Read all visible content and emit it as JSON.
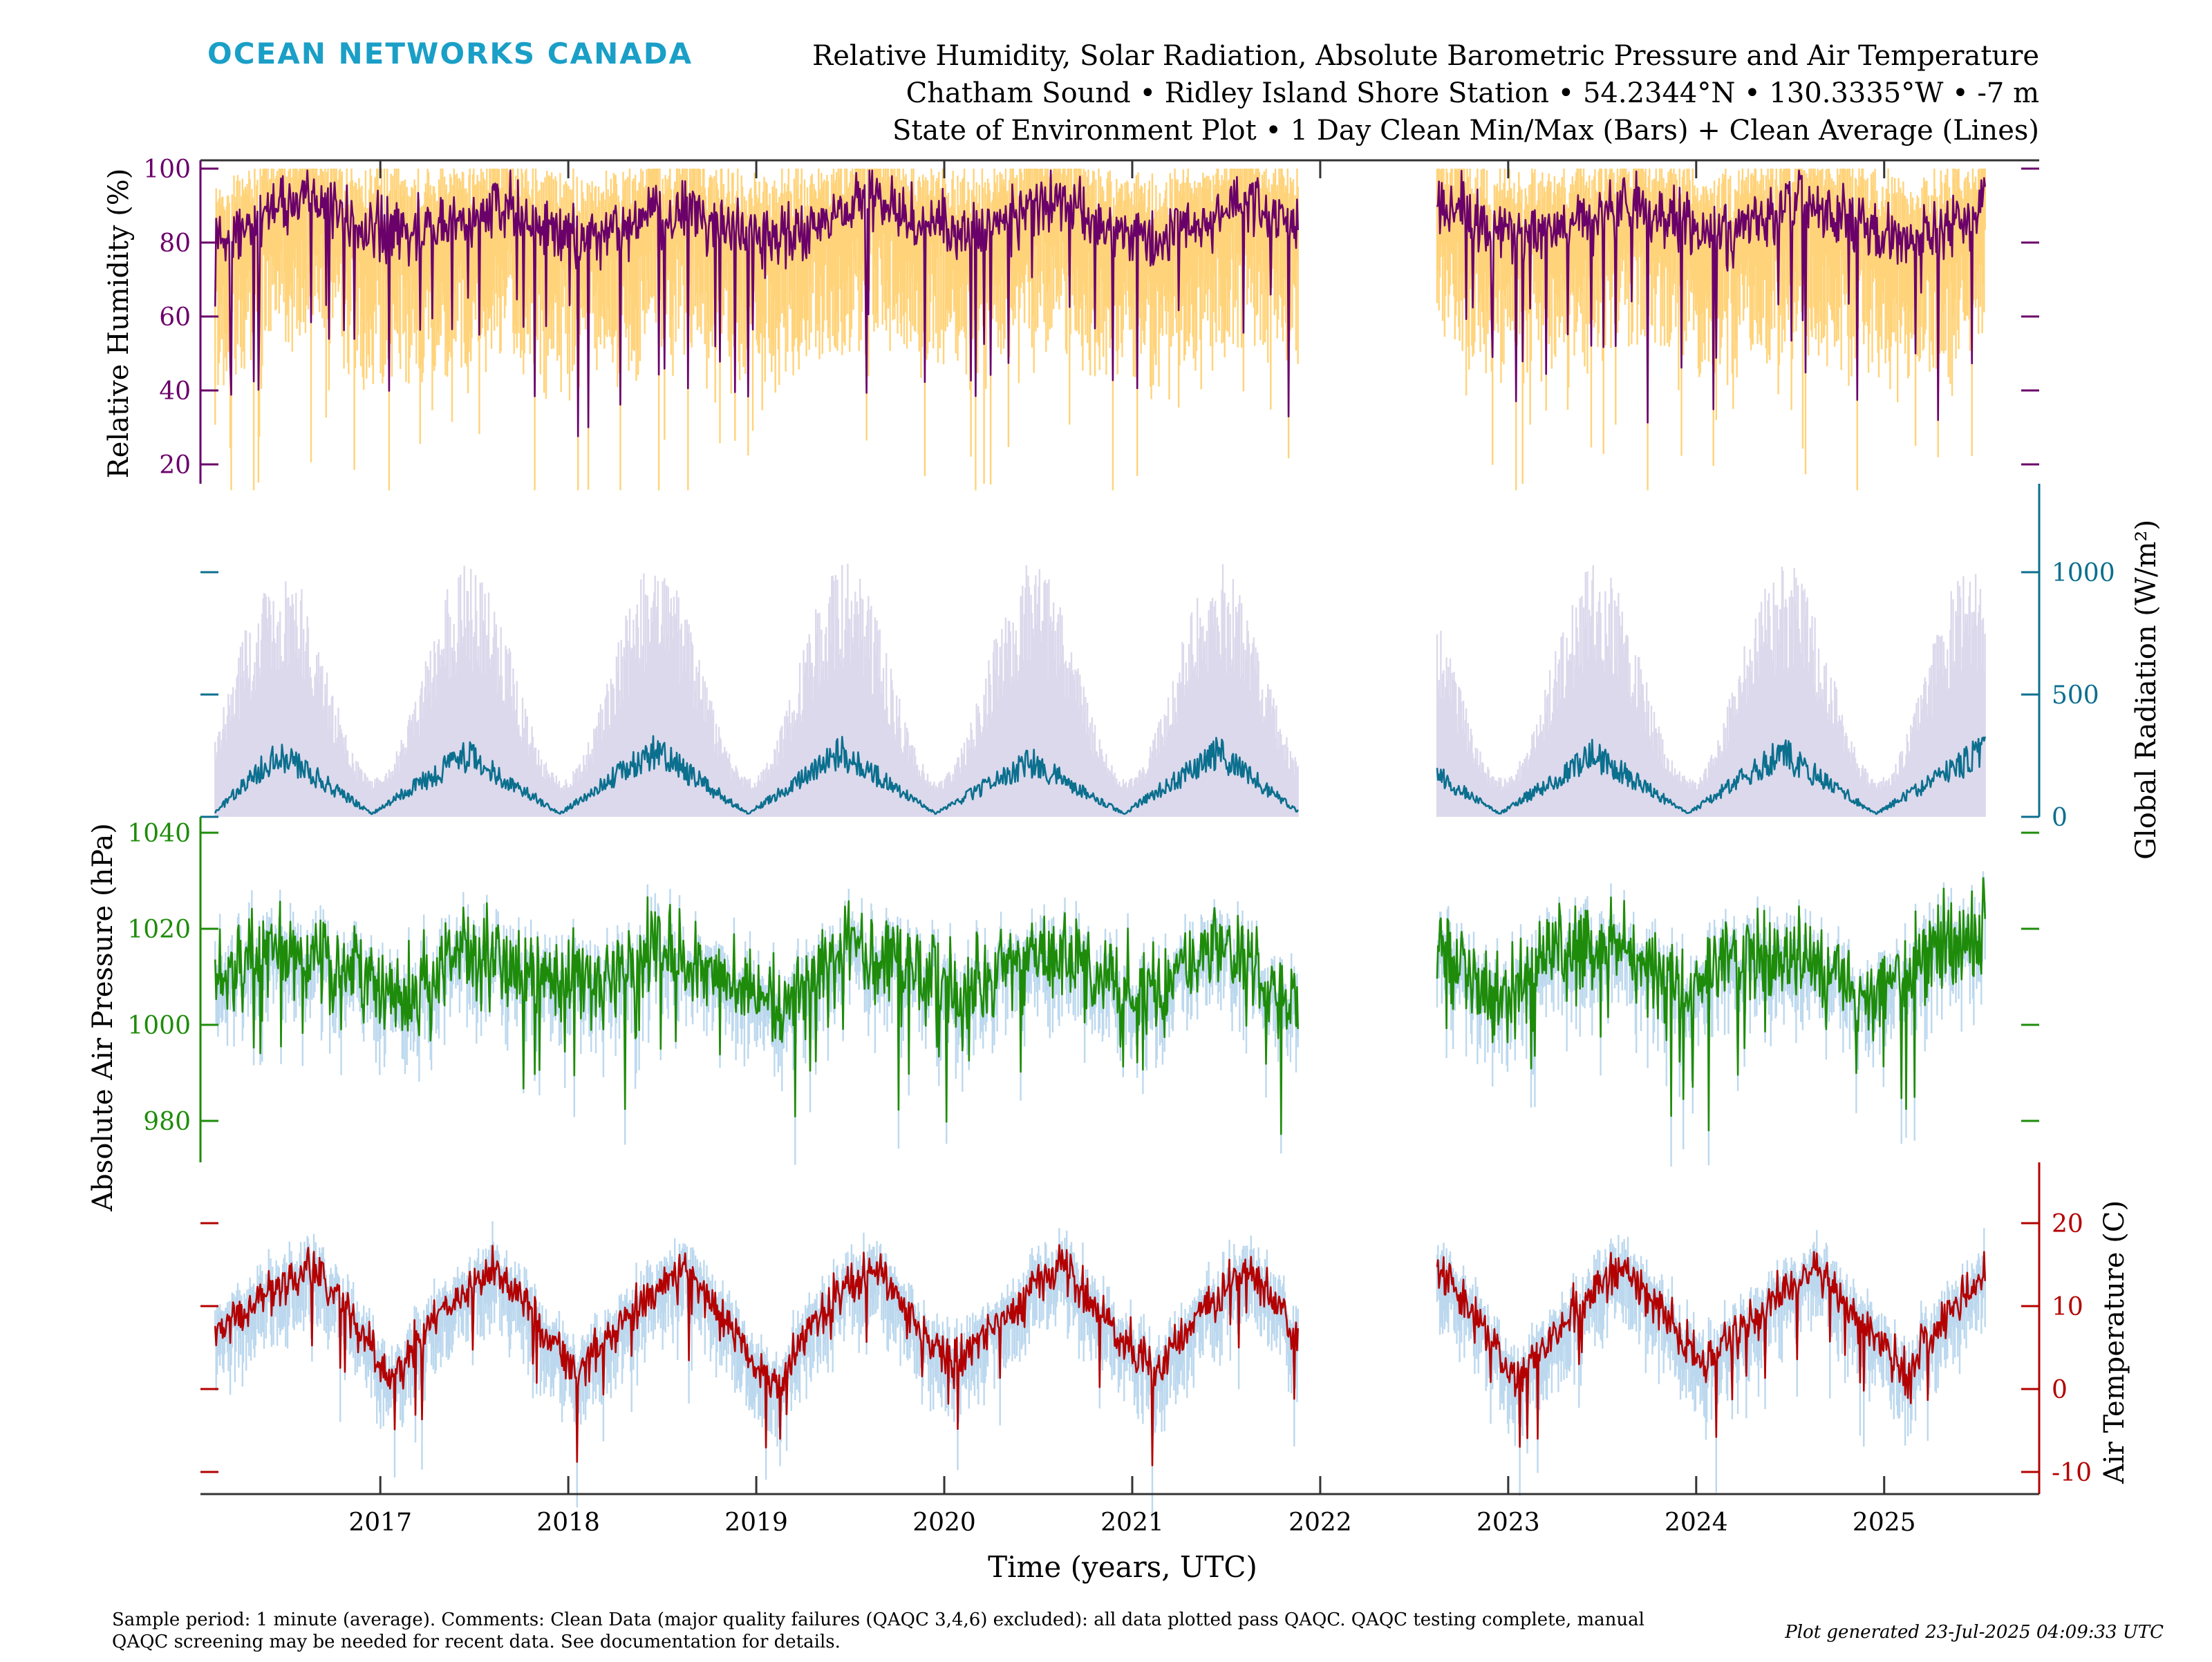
{
  "header": {
    "brand": "OCEAN NETWORKS CANADA",
    "title_lines": [
      "Relative Humidity, Solar Radiation, Absolute Barometric Pressure and Air Temperature",
      "Chatham Sound • Ridley Island Shore Station • 54.2344°N • 130.3335°W • -7 m",
      "State of Environment Plot • 1 Day Clean Min/Max (Bars) + Clean Average (Lines)"
    ]
  },
  "footer": {
    "comment_lines": [
      "Sample period: 1 minute (average). Comments: Clean Data (major quality failures (QAQC 3,4,6) excluded): all data plotted pass QAQC. QAQC testing complete, manual",
      "QAQC screening may be needed for recent data. See documentation for details."
    ],
    "generated": "Plot generated 23-Jul-2025 04:09:33 UTC"
  },
  "colors": {
    "humidity": "#6a006a",
    "humidity_bars": "#ffd37a",
    "radiation": "#0b6f8e",
    "radiation_bars": "#dcd9ec",
    "pressure": "#1e8c0a",
    "pressure_bars": "#bcd8ee",
    "temperature": "#b30000",
    "temperature_bars": "#bcd8ee",
    "brand": "#1a9fc7"
  },
  "chart_data": [
    {
      "type": "line",
      "ylabel": "Relative Humidity (%)",
      "yticks": [
        "20",
        "40",
        "60",
        "80",
        "100"
      ],
      "ylim": [
        0,
        100
      ],
      "axis_side": "left",
      "gap": [
        "2021-11-20",
        "2022-08-15"
      ],
      "series": [
        {
          "name": "",
          "x": [
            "2016-02",
            "2016-05",
            "2016-08",
            "2016-11",
            "2017-02",
            "2017-05",
            "2017-08",
            "2017-11",
            "2018-02",
            "2018-05",
            "2018-08",
            "2018-11",
            "2019-02",
            "2019-05",
            "2019-08",
            "2019-11",
            "2020-02",
            "2020-05",
            "2020-08",
            "2020-11",
            "2021-02",
            "2021-05",
            "2021-08",
            "2021-11",
            "2022-08",
            "2022-11",
            "2023-02",
            "2023-05",
            "2023-08",
            "2023-11",
            "2024-02",
            "2024-05",
            "2024-08",
            "2024-11",
            "2025-02",
            "2025-05",
            "2025-07"
          ],
          "values": [
            80,
            88,
            93,
            85,
            82,
            86,
            90,
            84,
            80,
            86,
            89,
            83,
            80,
            87,
            92,
            86,
            82,
            88,
            91,
            85,
            82,
            86,
            90,
            85,
            93,
            85,
            80,
            86,
            91,
            86,
            82,
            87,
            91,
            85,
            80,
            85,
            92
          ]
        }
      ],
      "bars": "1 Day Clean Min/Max"
    },
    {
      "type": "line",
      "ylabel": "Global Radiation (W/m²)",
      "yticks": [
        "0",
        "500",
        "1000"
      ],
      "ylim": [
        0,
        1100
      ],
      "axis_side": "right",
      "gap": [
        "2021-11-20",
        "2022-08-15"
      ],
      "series": [
        {
          "name": "",
          "x": [
            "2016-02",
            "2016-06",
            "2016-12",
            "2017-06",
            "2017-12",
            "2018-06",
            "2018-12",
            "2019-06",
            "2019-12",
            "2020-06",
            "2020-12",
            "2021-06",
            "2021-11",
            "2022-08",
            "2022-12",
            "2023-06",
            "2023-12",
            "2024-06",
            "2024-12",
            "2025-06",
            "2025-07"
          ],
          "values": [
            20,
            290,
            15,
            280,
            15,
            300,
            15,
            290,
            15,
            250,
            15,
            290,
            30,
            190,
            15,
            280,
            15,
            290,
            15,
            260,
            310
          ]
        }
      ],
      "bars": "1 Day Clean Min/Max"
    },
    {
      "type": "line",
      "ylabel": "Absolute Air Pressure (hPa)",
      "yticks": [
        "980",
        "1000",
        "1020",
        "1040"
      ],
      "ylim": [
        960,
        1040
      ],
      "axis_side": "left",
      "gap": [
        "2021-11-20",
        "2022-08-15"
      ],
      "series": [
        {
          "name": "",
          "x": [
            "2016-02",
            "2016-06",
            "2016-10",
            "2017-02",
            "2017-06",
            "2017-10",
            "2018-02",
            "2018-06",
            "2018-10",
            "2019-02",
            "2019-06",
            "2019-10",
            "2020-02",
            "2020-06",
            "2020-10",
            "2021-02",
            "2021-06",
            "2021-11",
            "2022-08",
            "2022-12",
            "2023-04",
            "2023-08",
            "2023-12",
            "2024-04",
            "2024-08",
            "2024-12",
            "2025-04",
            "2025-07"
          ],
          "values": [
            1010,
            1016,
            1012,
            1006,
            1015,
            1012,
            1008,
            1016,
            1010,
            1004,
            1016,
            1013,
            1006,
            1015,
            1011,
            1005,
            1016,
            1005,
            1018,
            1005,
            1016,
            1015,
            1006,
            1016,
            1013,
            1006,
            1016,
            1018
          ]
        }
      ],
      "bars": "1 Day Clean Min/Max"
    },
    {
      "type": "line",
      "ylabel": "Air Temperature (C)",
      "yticks": [
        "-10",
        "0",
        "10",
        "20"
      ],
      "ylim": [
        -11,
        31
      ],
      "axis_side": "right",
      "gap": [
        "2021-11-20",
        "2022-08-15"
      ],
      "series": [
        {
          "name": "",
          "x": [
            "2016-02",
            "2016-04",
            "2016-08",
            "2016-11",
            "2017-01",
            "2017-04",
            "2017-08",
            "2017-11",
            "2018-01",
            "2018-04",
            "2018-08",
            "2018-11",
            "2019-02",
            "2019-04",
            "2019-08",
            "2019-11",
            "2020-01",
            "2020-04",
            "2020-08",
            "2020-11",
            "2021-02",
            "2021-04",
            "2021-08",
            "2021-11",
            "2022-08",
            "2022-11",
            "2023-01",
            "2023-04",
            "2023-08",
            "2023-11",
            "2024-01",
            "2024-04",
            "2024-08",
            "2024-11",
            "2025-02",
            "2025-04",
            "2025-07"
          ],
          "values": [
            7,
            9,
            15,
            8,
            1,
            8,
            15,
            7,
            2,
            8,
            15,
            7,
            0,
            8,
            15,
            7,
            3,
            8,
            15,
            8,
            2,
            7,
            15,
            6,
            15,
            7,
            1,
            8,
            15,
            8,
            3,
            8,
            15,
            8,
            2,
            8,
            14
          ]
        }
      ],
      "bars": "1 Day Clean Min/Max"
    }
  ],
  "xaxis": {
    "xlabel": "Time (years, UTC)",
    "ticks": [
      "2017",
      "2018",
      "2019",
      "2020",
      "2021",
      "2022",
      "2023",
      "2024",
      "2025"
    ]
  }
}
